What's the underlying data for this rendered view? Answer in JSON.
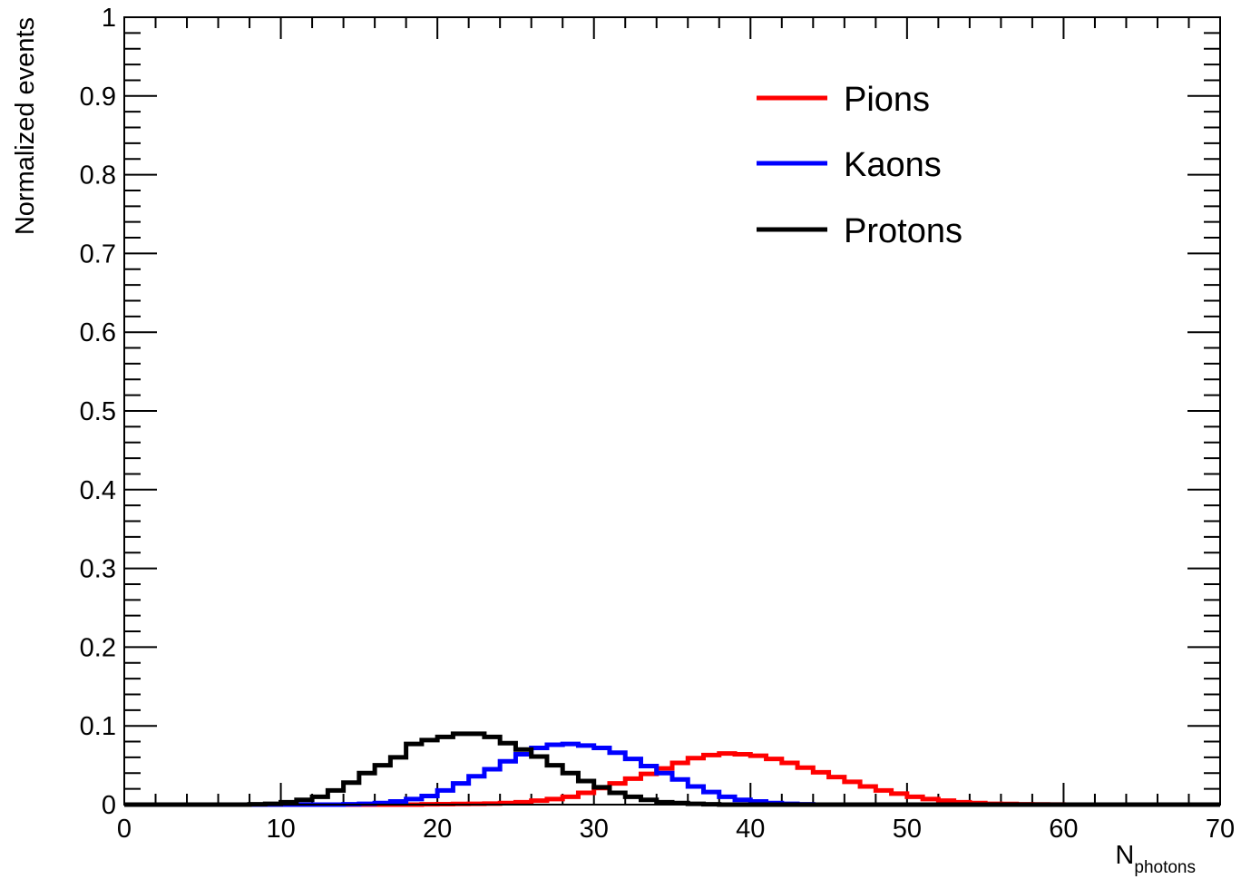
{
  "chart_data": {
    "type": "line",
    "style": "step-histogram",
    "xlabel": "N",
    "xlabel_subscript": "photons",
    "ylabel": "Normalized events",
    "xlim": [
      0,
      70
    ],
    "ylim": [
      0,
      1
    ],
    "x_ticks": [
      0,
      10,
      20,
      30,
      40,
      50,
      60,
      70
    ],
    "x_tick_labels": [
      "0",
      "10",
      "20",
      "30",
      "40",
      "50",
      "60",
      "70"
    ],
    "y_ticks": [
      0,
      0.1,
      0.2,
      0.3,
      0.4,
      0.5,
      0.6,
      0.7,
      0.8,
      0.9,
      1
    ],
    "y_tick_labels": [
      "0",
      "0.1",
      "0.2",
      "0.3",
      "0.4",
      "0.5",
      "0.6",
      "0.7",
      "0.8",
      "0.9",
      "1"
    ],
    "x_bin_edges_start": 0,
    "bin_width": 1,
    "legend_position": "top-right",
    "grid": false,
    "series": [
      {
        "name": "Pions",
        "color": "#ff0000",
        "values": [
          0,
          0,
          0,
          0,
          0,
          0,
          0,
          0,
          0,
          0,
          0,
          0,
          0,
          0,
          0,
          0,
          0,
          0,
          0,
          0.0005,
          0.0006,
          0.0008,
          0.001,
          0.0013,
          0.002,
          0.003,
          0.005,
          0.007,
          0.01,
          0.015,
          0.021,
          0.027,
          0.033,
          0.039,
          0.046,
          0.053,
          0.059,
          0.063,
          0.065,
          0.064,
          0.062,
          0.058,
          0.053,
          0.047,
          0.041,
          0.035,
          0.029,
          0.023,
          0.018,
          0.014,
          0.01,
          0.007,
          0.005,
          0.003,
          0.002,
          0.001,
          0.0008,
          0.0005,
          0.0003,
          0.0002,
          0,
          0,
          0,
          0,
          0,
          0,
          0,
          0,
          0,
          0
        ]
      },
      {
        "name": "Kaons",
        "color": "#0000ff",
        "values": [
          0,
          0,
          0,
          0,
          0,
          0,
          0,
          0,
          0,
          0,
          0,
          0,
          0,
          0,
          0.0005,
          0.001,
          0.002,
          0.004,
          0.007,
          0.011,
          0.018,
          0.027,
          0.036,
          0.045,
          0.055,
          0.064,
          0.072,
          0.076,
          0.077,
          0.075,
          0.072,
          0.066,
          0.058,
          0.049,
          0.04,
          0.032,
          0.023,
          0.016,
          0.01,
          0.006,
          0.004,
          0.002,
          0.001,
          0.0005,
          0,
          0,
          0,
          0,
          0,
          0,
          0,
          0,
          0,
          0,
          0,
          0,
          0,
          0,
          0,
          0,
          0,
          0,
          0,
          0,
          0,
          0,
          0,
          0,
          0,
          0
        ]
      },
      {
        "name": "Protons",
        "color": "#000000",
        "values": [
          0,
          0,
          0,
          0,
          0,
          0,
          0,
          0,
          0.0005,
          0.001,
          0.003,
          0.006,
          0.01,
          0.018,
          0.028,
          0.04,
          0.05,
          0.06,
          0.077,
          0.082,
          0.086,
          0.09,
          0.09,
          0.086,
          0.078,
          0.07,
          0.061,
          0.05,
          0.04,
          0.03,
          0.022,
          0.015,
          0.01,
          0.006,
          0.003,
          0.002,
          0.001,
          0.0005,
          0,
          0,
          0,
          0,
          0,
          0,
          0,
          0,
          0,
          0,
          0,
          0,
          0,
          0,
          0,
          0,
          0,
          0,
          0,
          0,
          0,
          0,
          0,
          0,
          0,
          0,
          0,
          0,
          0,
          0,
          0,
          0
        ]
      }
    ]
  }
}
